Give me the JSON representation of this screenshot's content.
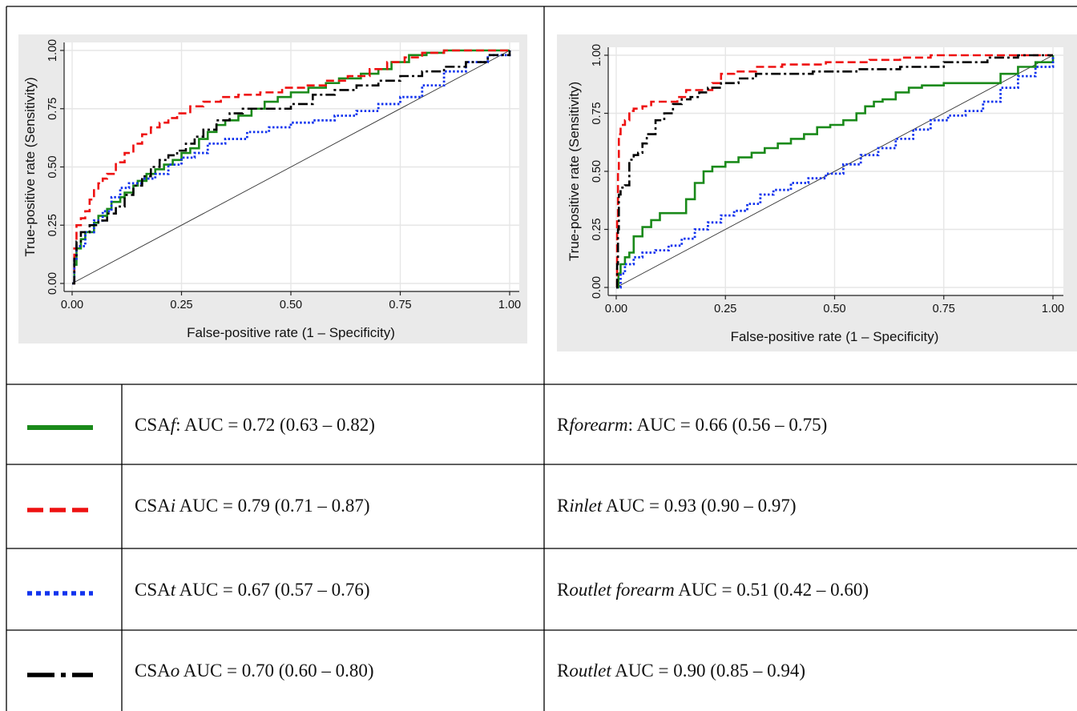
{
  "chart_data": [
    {
      "type": "line",
      "title": "",
      "xlabel": "False-positive rate (1 – Specificity)",
      "ylabel": "True-positive rate (Sensitivity)",
      "xlim": [
        0,
        1
      ],
      "ylim": [
        0,
        1
      ],
      "x_ticks": [
        "0.00",
        "0.25",
        "0.50",
        "0.75",
        "1.00"
      ],
      "y_ticks": [
        "0.00",
        "0.25",
        "0.50",
        "0.75",
        "1.00"
      ],
      "grid": true,
      "reference_line": {
        "x": [
          0,
          1
        ],
        "y": [
          0,
          1
        ]
      },
      "series": [
        {
          "name": "CSAf",
          "color": "#1a8a1a",
          "style": "solid",
          "x": [
            0,
            0.005,
            0.01,
            0.02,
            0.03,
            0.05,
            0.06,
            0.08,
            0.09,
            0.11,
            0.12,
            0.14,
            0.15,
            0.17,
            0.19,
            0.21,
            0.23,
            0.25,
            0.27,
            0.29,
            0.31,
            0.33,
            0.35,
            0.38,
            0.41,
            0.44,
            0.47,
            0.5,
            0.54,
            0.58,
            0.61,
            0.66,
            0.7,
            0.73,
            0.77,
            0.81,
            0.85,
            0.9,
            0.95,
            1.0
          ],
          "y": [
            0,
            0.08,
            0.15,
            0.19,
            0.22,
            0.26,
            0.29,
            0.32,
            0.35,
            0.37,
            0.39,
            0.42,
            0.44,
            0.47,
            0.49,
            0.51,
            0.53,
            0.56,
            0.58,
            0.62,
            0.65,
            0.68,
            0.7,
            0.72,
            0.75,
            0.78,
            0.8,
            0.82,
            0.84,
            0.86,
            0.88,
            0.9,
            0.92,
            0.95,
            0.98,
            0.99,
            1.0,
            1.0,
            1.0,
            1.0
          ]
        },
        {
          "name": "CSAi",
          "color": "#ee1111",
          "style": "dashed",
          "x": [
            0,
            0.005,
            0.01,
            0.02,
            0.03,
            0.04,
            0.05,
            0.06,
            0.07,
            0.08,
            0.1,
            0.12,
            0.14,
            0.16,
            0.18,
            0.2,
            0.22,
            0.24,
            0.27,
            0.3,
            0.34,
            0.38,
            0.43,
            0.48,
            0.53,
            0.58,
            0.63,
            0.68,
            0.72,
            0.76,
            0.8,
            0.85,
            0.9,
            0.95,
            1.0
          ],
          "y": [
            0,
            0.15,
            0.25,
            0.28,
            0.31,
            0.36,
            0.4,
            0.43,
            0.45,
            0.47,
            0.52,
            0.56,
            0.6,
            0.64,
            0.67,
            0.69,
            0.71,
            0.73,
            0.76,
            0.78,
            0.8,
            0.81,
            0.82,
            0.84,
            0.85,
            0.87,
            0.89,
            0.92,
            0.95,
            0.97,
            0.99,
            1.0,
            1.0,
            1.0,
            1.0
          ]
        },
        {
          "name": "CSAt",
          "color": "#1133ee",
          "style": "dotted",
          "x": [
            0,
            0.005,
            0.01,
            0.03,
            0.05,
            0.07,
            0.09,
            0.11,
            0.13,
            0.16,
            0.19,
            0.22,
            0.25,
            0.28,
            0.31,
            0.35,
            0.4,
            0.45,
            0.5,
            0.55,
            0.6,
            0.65,
            0.7,
            0.75,
            0.8,
            0.85,
            0.9,
            0.95,
            1.0
          ],
          "y": [
            0,
            0.1,
            0.16,
            0.22,
            0.27,
            0.31,
            0.37,
            0.41,
            0.43,
            0.45,
            0.47,
            0.51,
            0.54,
            0.56,
            0.6,
            0.62,
            0.65,
            0.67,
            0.69,
            0.7,
            0.72,
            0.74,
            0.77,
            0.8,
            0.85,
            0.91,
            0.95,
            0.98,
            1.0
          ]
        },
        {
          "name": "CSAo",
          "color": "#000000",
          "style": "dashdot",
          "x": [
            0,
            0.005,
            0.01,
            0.02,
            0.04,
            0.06,
            0.08,
            0.1,
            0.12,
            0.14,
            0.16,
            0.18,
            0.2,
            0.22,
            0.24,
            0.26,
            0.28,
            0.3,
            0.33,
            0.36,
            0.39,
            0.42,
            0.46,
            0.5,
            0.55,
            0.6,
            0.65,
            0.7,
            0.75,
            0.8,
            0.85,
            0.9,
            0.95,
            1.0
          ],
          "y": [
            0,
            0.12,
            0.18,
            0.22,
            0.25,
            0.27,
            0.3,
            0.33,
            0.38,
            0.42,
            0.46,
            0.5,
            0.53,
            0.55,
            0.57,
            0.6,
            0.63,
            0.66,
            0.7,
            0.73,
            0.75,
            0.75,
            0.75,
            0.77,
            0.81,
            0.83,
            0.85,
            0.87,
            0.89,
            0.91,
            0.93,
            0.95,
            0.98,
            1.0
          ]
        }
      ]
    },
    {
      "type": "line",
      "title": "",
      "xlabel": "False-positive rate (1 – Specificity)",
      "ylabel": "True-positive rate (Sensitivity)",
      "xlim": [
        0,
        1
      ],
      "ylim": [
        0,
        1
      ],
      "x_ticks": [
        "0.00",
        "0.25",
        "0.50",
        "0.75",
        "1.00"
      ],
      "y_ticks": [
        "0.00",
        "0.25",
        "0.50",
        "0.75",
        "1.00"
      ],
      "grid": true,
      "reference_line": {
        "x": [
          0,
          1
        ],
        "y": [
          0,
          1
        ]
      },
      "series": [
        {
          "name": "Rforearm",
          "color": "#1a8a1a",
          "style": "solid",
          "x": [
            0,
            0.005,
            0.01,
            0.02,
            0.03,
            0.04,
            0.06,
            0.08,
            0.1,
            0.13,
            0.16,
            0.18,
            0.2,
            0.22,
            0.25,
            0.28,
            0.31,
            0.34,
            0.37,
            0.4,
            0.43,
            0.46,
            0.49,
            0.52,
            0.55,
            0.57,
            0.59,
            0.61,
            0.64,
            0.67,
            0.7,
            0.75,
            0.8,
            0.86,
            0.88,
            0.92,
            0.96,
            1.0
          ],
          "y": [
            0,
            0.06,
            0.1,
            0.13,
            0.15,
            0.22,
            0.26,
            0.29,
            0.32,
            0.32,
            0.38,
            0.45,
            0.5,
            0.52,
            0.54,
            0.56,
            0.58,
            0.6,
            0.62,
            0.64,
            0.66,
            0.69,
            0.7,
            0.72,
            0.75,
            0.78,
            0.8,
            0.81,
            0.84,
            0.86,
            0.87,
            0.88,
            0.88,
            0.88,
            0.92,
            0.95,
            0.97,
            1.0
          ]
        },
        {
          "name": "Rinlet",
          "color": "#ee1111",
          "style": "dashed",
          "x": [
            0,
            0.002,
            0.004,
            0.006,
            0.01,
            0.02,
            0.03,
            0.04,
            0.06,
            0.08,
            0.11,
            0.14,
            0.16,
            0.19,
            0.22,
            0.24,
            0.27,
            0.32,
            0.38,
            0.48,
            0.58,
            0.65,
            0.72,
            0.8,
            0.88,
            0.95,
            1.0
          ],
          "y": [
            0,
            0.3,
            0.5,
            0.66,
            0.7,
            0.72,
            0.76,
            0.77,
            0.78,
            0.8,
            0.8,
            0.82,
            0.85,
            0.85,
            0.88,
            0.92,
            0.93,
            0.95,
            0.96,
            0.97,
            0.98,
            0.99,
            1.0,
            1.0,
            1.0,
            1.0,
            1.0
          ]
        },
        {
          "name": "Routlet forearm",
          "color": "#1133ee",
          "style": "dotted",
          "x": [
            0,
            0.01,
            0.02,
            0.04,
            0.06,
            0.09,
            0.12,
            0.15,
            0.18,
            0.21,
            0.24,
            0.27,
            0.3,
            0.33,
            0.36,
            0.4,
            0.44,
            0.48,
            0.52,
            0.56,
            0.6,
            0.64,
            0.68,
            0.72,
            0.76,
            0.8,
            0.84,
            0.88,
            0.92,
            0.96,
            1.0
          ],
          "y": [
            0,
            0.06,
            0.1,
            0.13,
            0.15,
            0.16,
            0.18,
            0.21,
            0.25,
            0.28,
            0.31,
            0.33,
            0.36,
            0.4,
            0.42,
            0.45,
            0.47,
            0.49,
            0.53,
            0.57,
            0.6,
            0.64,
            0.68,
            0.72,
            0.74,
            0.76,
            0.8,
            0.86,
            0.91,
            0.95,
            1.0
          ]
        },
        {
          "name": "Routlet",
          "color": "#000000",
          "style": "dashdot",
          "x": [
            0,
            0.002,
            0.004,
            0.006,
            0.01,
            0.02,
            0.03,
            0.04,
            0.05,
            0.06,
            0.07,
            0.09,
            0.11,
            0.13,
            0.15,
            0.17,
            0.19,
            0.21,
            0.24,
            0.28,
            0.32,
            0.38,
            0.45,
            0.55,
            0.65,
            0.75,
            0.85,
            0.92,
            1.0
          ],
          "y": [
            0,
            0.1,
            0.25,
            0.4,
            0.43,
            0.44,
            0.55,
            0.57,
            0.58,
            0.62,
            0.66,
            0.72,
            0.75,
            0.79,
            0.81,
            0.82,
            0.84,
            0.86,
            0.88,
            0.9,
            0.92,
            0.92,
            0.93,
            0.94,
            0.95,
            0.97,
            0.99,
            1.0,
            1.0
          ]
        }
      ]
    }
  ],
  "legend": [
    {
      "swatch_style": "solid",
      "color": "#1a8a1a",
      "left": {
        "pre": "CSA",
        "ital": "f",
        "post": ": AUC = 0.72 (0.63 – 0.82)"
      },
      "right": {
        "pre": "R",
        "ital": "forearm",
        "post": ": AUC = 0.66 (0.56 – 0.75)"
      }
    },
    {
      "swatch_style": "dashed",
      "color": "#ee1111",
      "left": {
        "pre": "CSA",
        "ital": "i",
        "post": " AUC = 0.79 (0.71 – 0.87)"
      },
      "right": {
        "pre": "R",
        "ital": "inlet",
        "post": " AUC = 0.93 (0.90 – 0.97)"
      }
    },
    {
      "swatch_style": "dotted",
      "color": "#1133ee",
      "left": {
        "pre": "CSA",
        "ital": "t",
        "post": " AUC = 0.67 (0.57 – 0.76)"
      },
      "right": {
        "pre": "R",
        "ital": "outlet forearm",
        "post": " AUC = 0.51 (0.42 – 0.60)"
      }
    },
    {
      "swatch_style": "dashdot",
      "color": "#000000",
      "left": {
        "pre": "CSA",
        "ital": "o",
        "post": " AUC = 0.70 (0.60 – 0.80)"
      },
      "right": {
        "pre": "R",
        "ital": "outlet",
        "post": " AUC = 0.90 (0.85 – 0.94)"
      }
    }
  ]
}
